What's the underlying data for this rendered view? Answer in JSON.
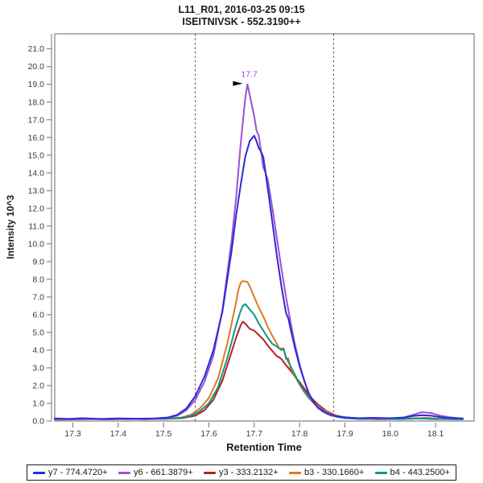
{
  "title": {
    "line1": "L11_R01, 2016-03-25 09:15",
    "line2": "ISEITNIVSK - 552.3190++"
  },
  "chart_data": {
    "type": "line",
    "title": "L11_R01, 2016-03-25 09:15 — ISEITNIVSK - 552.3190++",
    "xlabel": "Retention Time",
    "ylabel": "Intensity 10^3",
    "xlim": [
      17.26,
      18.185
    ],
    "ylim": [
      0,
      21.85
    ],
    "grid": false,
    "legend_position": "bottom",
    "x_ticks": [
      17.3,
      17.4,
      17.5,
      17.6,
      17.7,
      17.8,
      17.9,
      18.0,
      18.1
    ],
    "x_tick_labels": [
      "17.3",
      "17.4",
      "17.5",
      "17.6",
      "17.7",
      "17.8",
      "17.9",
      "18.0",
      "18.1"
    ],
    "y_ticks": [
      0,
      1,
      2,
      3,
      4,
      5,
      6,
      7,
      8,
      9,
      10,
      11,
      12,
      13,
      14,
      15,
      16,
      17,
      18,
      19,
      20,
      21
    ],
    "y_tick_labels": [
      "0.0",
      "1.0",
      "2.0",
      "3.0",
      "4.0",
      "5.0",
      "6.0",
      "7.0",
      "8.0",
      "9.0",
      "10.0",
      "11.0",
      "12.0",
      "13.0",
      "14.0",
      "15.0",
      "16.0",
      "17.0",
      "18.0",
      "19.0",
      "20.0",
      "21.0"
    ],
    "peak_boundaries": [
      17.57,
      17.875
    ],
    "annotation": {
      "label": "17.7",
      "x": 17.685,
      "y": 19.0
    },
    "colors": {
      "frame": "#8a8a8a",
      "ticks": "#707070",
      "tick_text": "#3a3a3a",
      "boundary": "#4d4d4d",
      "text": "#1a1a1a"
    },
    "series": [
      {
        "name": "y7 - 774.4720+",
        "color": "#2b2bd5",
        "points": [
          [
            17.26,
            0.15
          ],
          [
            17.29,
            0.12
          ],
          [
            17.32,
            0.16
          ],
          [
            17.36,
            0.12
          ],
          [
            17.4,
            0.15
          ],
          [
            17.44,
            0.13
          ],
          [
            17.48,
            0.15
          ],
          [
            17.51,
            0.2
          ],
          [
            17.53,
            0.35
          ],
          [
            17.55,
            0.7
          ],
          [
            17.57,
            1.4
          ],
          [
            17.59,
            2.5
          ],
          [
            17.61,
            4.0
          ],
          [
            17.63,
            6.2
          ],
          [
            17.65,
            9.6
          ],
          [
            17.66,
            11.6
          ],
          [
            17.67,
            13.3
          ],
          [
            17.68,
            14.9
          ],
          [
            17.69,
            15.8
          ],
          [
            17.7,
            16.1
          ],
          [
            17.705,
            15.8
          ],
          [
            17.71,
            15.4
          ],
          [
            17.715,
            15.2
          ],
          [
            17.72,
            14.9
          ],
          [
            17.73,
            13.1
          ],
          [
            17.74,
            11.2
          ],
          [
            17.75,
            9.3
          ],
          [
            17.76,
            7.6
          ],
          [
            17.77,
            6.1
          ],
          [
            17.775,
            5.8
          ],
          [
            17.78,
            5.2
          ],
          [
            17.79,
            4.1
          ],
          [
            17.8,
            3.1
          ],
          [
            17.81,
            2.3
          ],
          [
            17.82,
            1.6
          ],
          [
            17.83,
            1.1
          ],
          [
            17.84,
            0.75
          ],
          [
            17.86,
            0.42
          ],
          [
            17.88,
            0.27
          ],
          [
            17.9,
            0.2
          ],
          [
            17.93,
            0.16
          ],
          [
            17.96,
            0.18
          ],
          [
            18.0,
            0.16
          ],
          [
            18.03,
            0.2
          ],
          [
            18.05,
            0.28
          ],
          [
            18.07,
            0.33
          ],
          [
            18.09,
            0.3
          ],
          [
            18.11,
            0.22
          ],
          [
            18.13,
            0.17
          ],
          [
            18.16,
            0.15
          ]
        ]
      },
      {
        "name": "y6 - 661.3879+",
        "color": "#9c4fd6",
        "points": [
          [
            17.26,
            0.1
          ],
          [
            17.3,
            0.1
          ],
          [
            17.34,
            0.12
          ],
          [
            17.38,
            0.1
          ],
          [
            17.42,
            0.12
          ],
          [
            17.46,
            0.1
          ],
          [
            17.5,
            0.14
          ],
          [
            17.53,
            0.3
          ],
          [
            17.55,
            0.6
          ],
          [
            17.57,
            1.2
          ],
          [
            17.59,
            2.2
          ],
          [
            17.61,
            3.7
          ],
          [
            17.63,
            6.3
          ],
          [
            17.65,
            10.2
          ],
          [
            17.66,
            12.6
          ],
          [
            17.67,
            15.6
          ],
          [
            17.68,
            18.2
          ],
          [
            17.685,
            19.0
          ],
          [
            17.69,
            18.4
          ],
          [
            17.7,
            17.2
          ],
          [
            17.705,
            16.4
          ],
          [
            17.71,
            16.1
          ],
          [
            17.72,
            14.3
          ],
          [
            17.725,
            14.0
          ],
          [
            17.73,
            13.6
          ],
          [
            17.74,
            12.0
          ],
          [
            17.75,
            10.3
          ],
          [
            17.76,
            8.6
          ],
          [
            17.77,
            7.0
          ],
          [
            17.78,
            5.6
          ],
          [
            17.79,
            4.3
          ],
          [
            17.8,
            3.2
          ],
          [
            17.81,
            2.3
          ],
          [
            17.82,
            1.55
          ],
          [
            17.83,
            1.05
          ],
          [
            17.85,
            0.55
          ],
          [
            17.87,
            0.3
          ],
          [
            17.89,
            0.25
          ],
          [
            17.92,
            0.17
          ],
          [
            17.96,
            0.13
          ],
          [
            18.0,
            0.15
          ],
          [
            18.03,
            0.2
          ],
          [
            18.05,
            0.35
          ],
          [
            18.07,
            0.5
          ],
          [
            18.09,
            0.45
          ],
          [
            18.11,
            0.3
          ],
          [
            18.13,
            0.22
          ],
          [
            18.16,
            0.13
          ]
        ]
      },
      {
        "name": "y3 - 333.2132+",
        "color": "#b22222",
        "points": [
          [
            17.26,
            0.08
          ],
          [
            17.3,
            0.09
          ],
          [
            17.34,
            0.12
          ],
          [
            17.38,
            0.09
          ],
          [
            17.42,
            0.13
          ],
          [
            17.46,
            0.1
          ],
          [
            17.5,
            0.12
          ],
          [
            17.54,
            0.16
          ],
          [
            17.57,
            0.3
          ],
          [
            17.59,
            0.6
          ],
          [
            17.61,
            1.2
          ],
          [
            17.63,
            2.3
          ],
          [
            17.65,
            3.9
          ],
          [
            17.66,
            4.7
          ],
          [
            17.67,
            5.4
          ],
          [
            17.675,
            5.6
          ],
          [
            17.68,
            5.5
          ],
          [
            17.69,
            5.2
          ],
          [
            17.7,
            5.1
          ],
          [
            17.71,
            4.85
          ],
          [
            17.72,
            4.6
          ],
          [
            17.73,
            4.25
          ],
          [
            17.74,
            3.95
          ],
          [
            17.75,
            3.65
          ],
          [
            17.755,
            3.6
          ],
          [
            17.76,
            3.5
          ],
          [
            17.77,
            3.15
          ],
          [
            17.78,
            2.85
          ],
          [
            17.79,
            2.5
          ],
          [
            17.8,
            2.2
          ],
          [
            17.81,
            1.85
          ],
          [
            17.82,
            1.5
          ],
          [
            17.83,
            1.2
          ],
          [
            17.84,
            0.95
          ],
          [
            17.86,
            0.55
          ],
          [
            17.88,
            0.32
          ],
          [
            17.9,
            0.2
          ],
          [
            17.93,
            0.13
          ],
          [
            17.97,
            0.1
          ],
          [
            18.01,
            0.12
          ],
          [
            18.05,
            0.15
          ],
          [
            18.08,
            0.17
          ],
          [
            18.11,
            0.12
          ],
          [
            18.16,
            0.1
          ]
        ]
      },
      {
        "name": "b3 - 330.1660+",
        "color": "#e07820",
        "points": [
          [
            17.26,
            0.1
          ],
          [
            17.3,
            0.1
          ],
          [
            17.34,
            0.12
          ],
          [
            17.38,
            0.1
          ],
          [
            17.42,
            0.12
          ],
          [
            17.46,
            0.11
          ],
          [
            17.5,
            0.13
          ],
          [
            17.54,
            0.2
          ],
          [
            17.56,
            0.35
          ],
          [
            17.58,
            0.7
          ],
          [
            17.6,
            1.3
          ],
          [
            17.62,
            2.4
          ],
          [
            17.64,
            4.3
          ],
          [
            17.65,
            5.5
          ],
          [
            17.66,
            6.7
          ],
          [
            17.665,
            7.4
          ],
          [
            17.67,
            7.8
          ],
          [
            17.675,
            7.9
          ],
          [
            17.685,
            7.85
          ],
          [
            17.69,
            7.6
          ],
          [
            17.7,
            7.0
          ],
          [
            17.71,
            6.4
          ],
          [
            17.72,
            5.9
          ],
          [
            17.73,
            5.3
          ],
          [
            17.74,
            4.8
          ],
          [
            17.75,
            4.35
          ],
          [
            17.755,
            4.1
          ],
          [
            17.765,
            4.1
          ],
          [
            17.77,
            3.5
          ],
          [
            17.775,
            3.55
          ],
          [
            17.78,
            3.0
          ],
          [
            17.79,
            2.5
          ],
          [
            17.8,
            2.05
          ],
          [
            17.81,
            1.65
          ],
          [
            17.82,
            1.3
          ],
          [
            17.84,
            0.8
          ],
          [
            17.86,
            0.5
          ],
          [
            17.88,
            0.3
          ],
          [
            17.9,
            0.2
          ],
          [
            17.94,
            0.13
          ],
          [
            17.98,
            0.1
          ],
          [
            18.02,
            0.12
          ],
          [
            18.06,
            0.15
          ],
          [
            18.1,
            0.12
          ],
          [
            18.16,
            0.1
          ]
        ]
      },
      {
        "name": "b4 - 443.2500+",
        "color": "#0f9688",
        "points": [
          [
            17.26,
            0.1
          ],
          [
            17.3,
            0.1
          ],
          [
            17.34,
            0.1
          ],
          [
            17.38,
            0.12
          ],
          [
            17.42,
            0.1
          ],
          [
            17.46,
            0.12
          ],
          [
            17.5,
            0.12
          ],
          [
            17.54,
            0.18
          ],
          [
            17.56,
            0.3
          ],
          [
            17.58,
            0.55
          ],
          [
            17.6,
            1.0
          ],
          [
            17.62,
            1.9
          ],
          [
            17.64,
            3.5
          ],
          [
            17.66,
            5.4
          ],
          [
            17.67,
            6.2
          ],
          [
            17.675,
            6.5
          ],
          [
            17.68,
            6.6
          ],
          [
            17.69,
            6.3
          ],
          [
            17.7,
            6.0
          ],
          [
            17.71,
            5.5
          ],
          [
            17.72,
            5.1
          ],
          [
            17.73,
            4.7
          ],
          [
            17.74,
            4.35
          ],
          [
            17.75,
            4.2
          ],
          [
            17.76,
            4.0
          ],
          [
            17.765,
            4.05
          ],
          [
            17.77,
            3.6
          ],
          [
            17.78,
            3.1
          ],
          [
            17.79,
            2.6
          ],
          [
            17.8,
            2.1
          ],
          [
            17.81,
            1.7
          ],
          [
            17.82,
            1.35
          ],
          [
            17.84,
            0.8
          ],
          [
            17.86,
            0.45
          ],
          [
            17.88,
            0.25
          ],
          [
            17.9,
            0.16
          ],
          [
            17.94,
            0.11
          ],
          [
            17.98,
            0.12
          ],
          [
            18.02,
            0.1
          ],
          [
            18.06,
            0.14
          ],
          [
            18.1,
            0.11
          ],
          [
            18.16,
            0.1
          ]
        ]
      }
    ]
  },
  "legend": {
    "items": [
      {
        "id": "y7",
        "label": "y7 - 774.4720+",
        "color": "#2b2bd5"
      },
      {
        "id": "y6",
        "label": "y6 - 661.3879+",
        "color": "#9c4fd6"
      },
      {
        "id": "y3",
        "label": "y3 - 333.2132+",
        "color": "#b22222"
      },
      {
        "id": "b3",
        "label": "b3 - 330.1660+",
        "color": "#e07820"
      },
      {
        "id": "b4",
        "label": "b4 - 443.2500+",
        "color": "#0f9688"
      }
    ]
  }
}
